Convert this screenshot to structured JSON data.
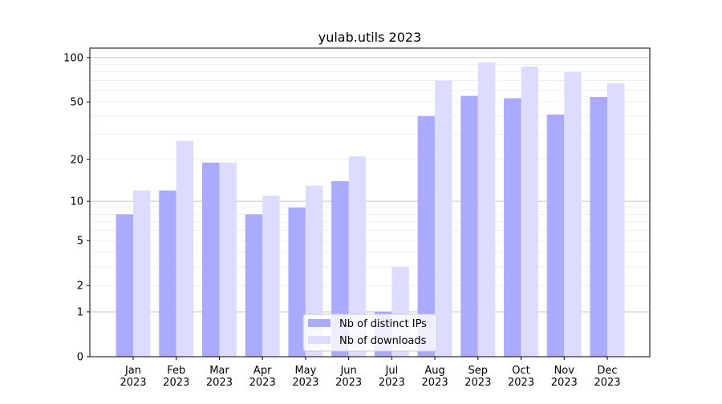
{
  "chart_data": {
    "type": "bar",
    "title": "yulab.utils 2023",
    "xlabel": "",
    "ylabel": "",
    "y_scale": "log10(y+1)",
    "ylim": [
      0,
      116
    ],
    "y_ticks": [
      0,
      1,
      2,
      5,
      10,
      20,
      50,
      100
    ],
    "grid": true,
    "legend_position": "bottom-center",
    "categories": [
      "Jan\n2023",
      "Feb\n2023",
      "Mar\n2023",
      "Apr\n2023",
      "May\n2023",
      "Jun\n2023",
      "Jul\n2023",
      "Aug\n2023",
      "Sep\n2023",
      "Oct\n2023",
      "Nov\n2023",
      "Dec\n2023"
    ],
    "series": [
      {
        "name": "Nb of distinct IPs",
        "color": "#aaaaff",
        "values": [
          8,
          12,
          19,
          8,
          9,
          14,
          1,
          40,
          55,
          53,
          41,
          54
        ]
      },
      {
        "name": "Nb of downloads",
        "color": "#dcdcff",
        "values": [
          12,
          27,
          19,
          11,
          13,
          21,
          3,
          70,
          93,
          87,
          80,
          67
        ]
      }
    ]
  }
}
